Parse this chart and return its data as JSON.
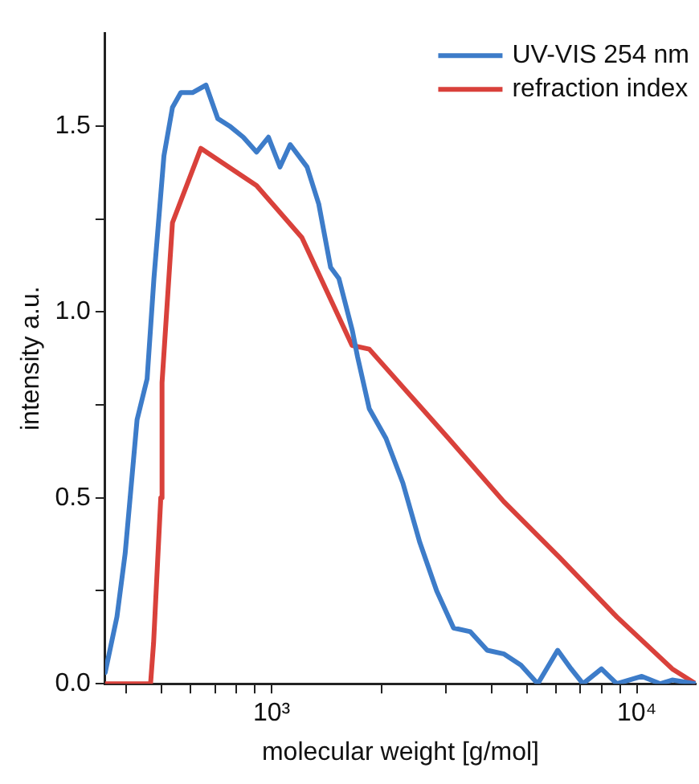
{
  "chart_data": {
    "type": "line",
    "xlabel": "molecular weight [g/mol]",
    "ylabel": "intensity a.u.",
    "log": "x",
    "xlim": [
      350,
      14500
    ],
    "ylim": [
      0,
      1.75
    ],
    "xticks": [
      {
        "value": 400,
        "label": null
      },
      {
        "value": 500,
        "label": null
      },
      {
        "value": 600,
        "label": null
      },
      {
        "value": 700,
        "label": null
      },
      {
        "value": 800,
        "label": null
      },
      {
        "value": 900,
        "label": null
      },
      {
        "value": 1000,
        "label": "10³"
      },
      {
        "value": 2000,
        "label": null
      },
      {
        "value": 3000,
        "label": null
      },
      {
        "value": 4000,
        "label": null
      },
      {
        "value": 5000,
        "label": null
      },
      {
        "value": 6000,
        "label": null
      },
      {
        "value": 7000,
        "label": null
      },
      {
        "value": 8000,
        "label": null
      },
      {
        "value": 9000,
        "label": null
      },
      {
        "value": 10000,
        "label": "10⁴"
      }
    ],
    "yticks": [
      {
        "value": 0,
        "label": "0.0"
      },
      {
        "value": 0.25,
        "label": null
      },
      {
        "value": 0.5,
        "label": "0.5"
      },
      {
        "value": 0.75,
        "label": null
      },
      {
        "value": 1,
        "label": "1.0"
      },
      {
        "value": 1.25,
        "label": null
      },
      {
        "value": 1.5,
        "label": "1.5"
      }
    ],
    "grid": false,
    "legend": "top right",
    "marker": "none",
    "line_style": "solid",
    "series": [
      {
        "name": "UV-VIS 254 nm",
        "color": "#3d7cc9",
        "x": [
          350,
          377,
          397,
          428,
          456,
          476,
          507,
          535,
          564,
          607,
          661,
          712,
          767,
          836,
          909,
          980,
          1054,
          1124,
          1250,
          1346,
          1450,
          1528,
          1663,
          1718,
          1850,
          2056,
          2287,
          2545,
          2830,
          3148,
          3500,
          3893,
          4329,
          4814,
          5354,
          6069,
          6607,
          7121,
          8000,
          8810,
          10320,
          11600,
          12500,
          14500
        ],
        "values": [
          0.03,
          0.18,
          0.35,
          0.71,
          0.82,
          1.09,
          1.42,
          1.55,
          1.59,
          1.59,
          1.61,
          1.52,
          1.5,
          1.47,
          1.43,
          1.47,
          1.39,
          1.45,
          1.39,
          1.29,
          1.12,
          1.09,
          0.95,
          0.88,
          0.74,
          0.66,
          0.54,
          0.38,
          0.25,
          0.15,
          0.14,
          0.09,
          0.08,
          0.05,
          0,
          0.09,
          0.04,
          0,
          0.04,
          0,
          0.02,
          0,
          0.01,
          0
        ]
      },
      {
        "name": "refraction index",
        "color": "#d9413b",
        "x": [
          350,
          466,
          475,
          497,
          501,
          535,
          640,
          909,
          1210,
          1660,
          1850,
          3050,
          4320,
          6140,
          8810,
          12500,
          14500
        ],
        "values": [
          0,
          0,
          0.11,
          0.5,
          0.81,
          1.24,
          1.44,
          1.34,
          1.2,
          0.91,
          0.9,
          0.66,
          0.49,
          0.34,
          0.18,
          0.04,
          0
        ]
      }
    ]
  }
}
